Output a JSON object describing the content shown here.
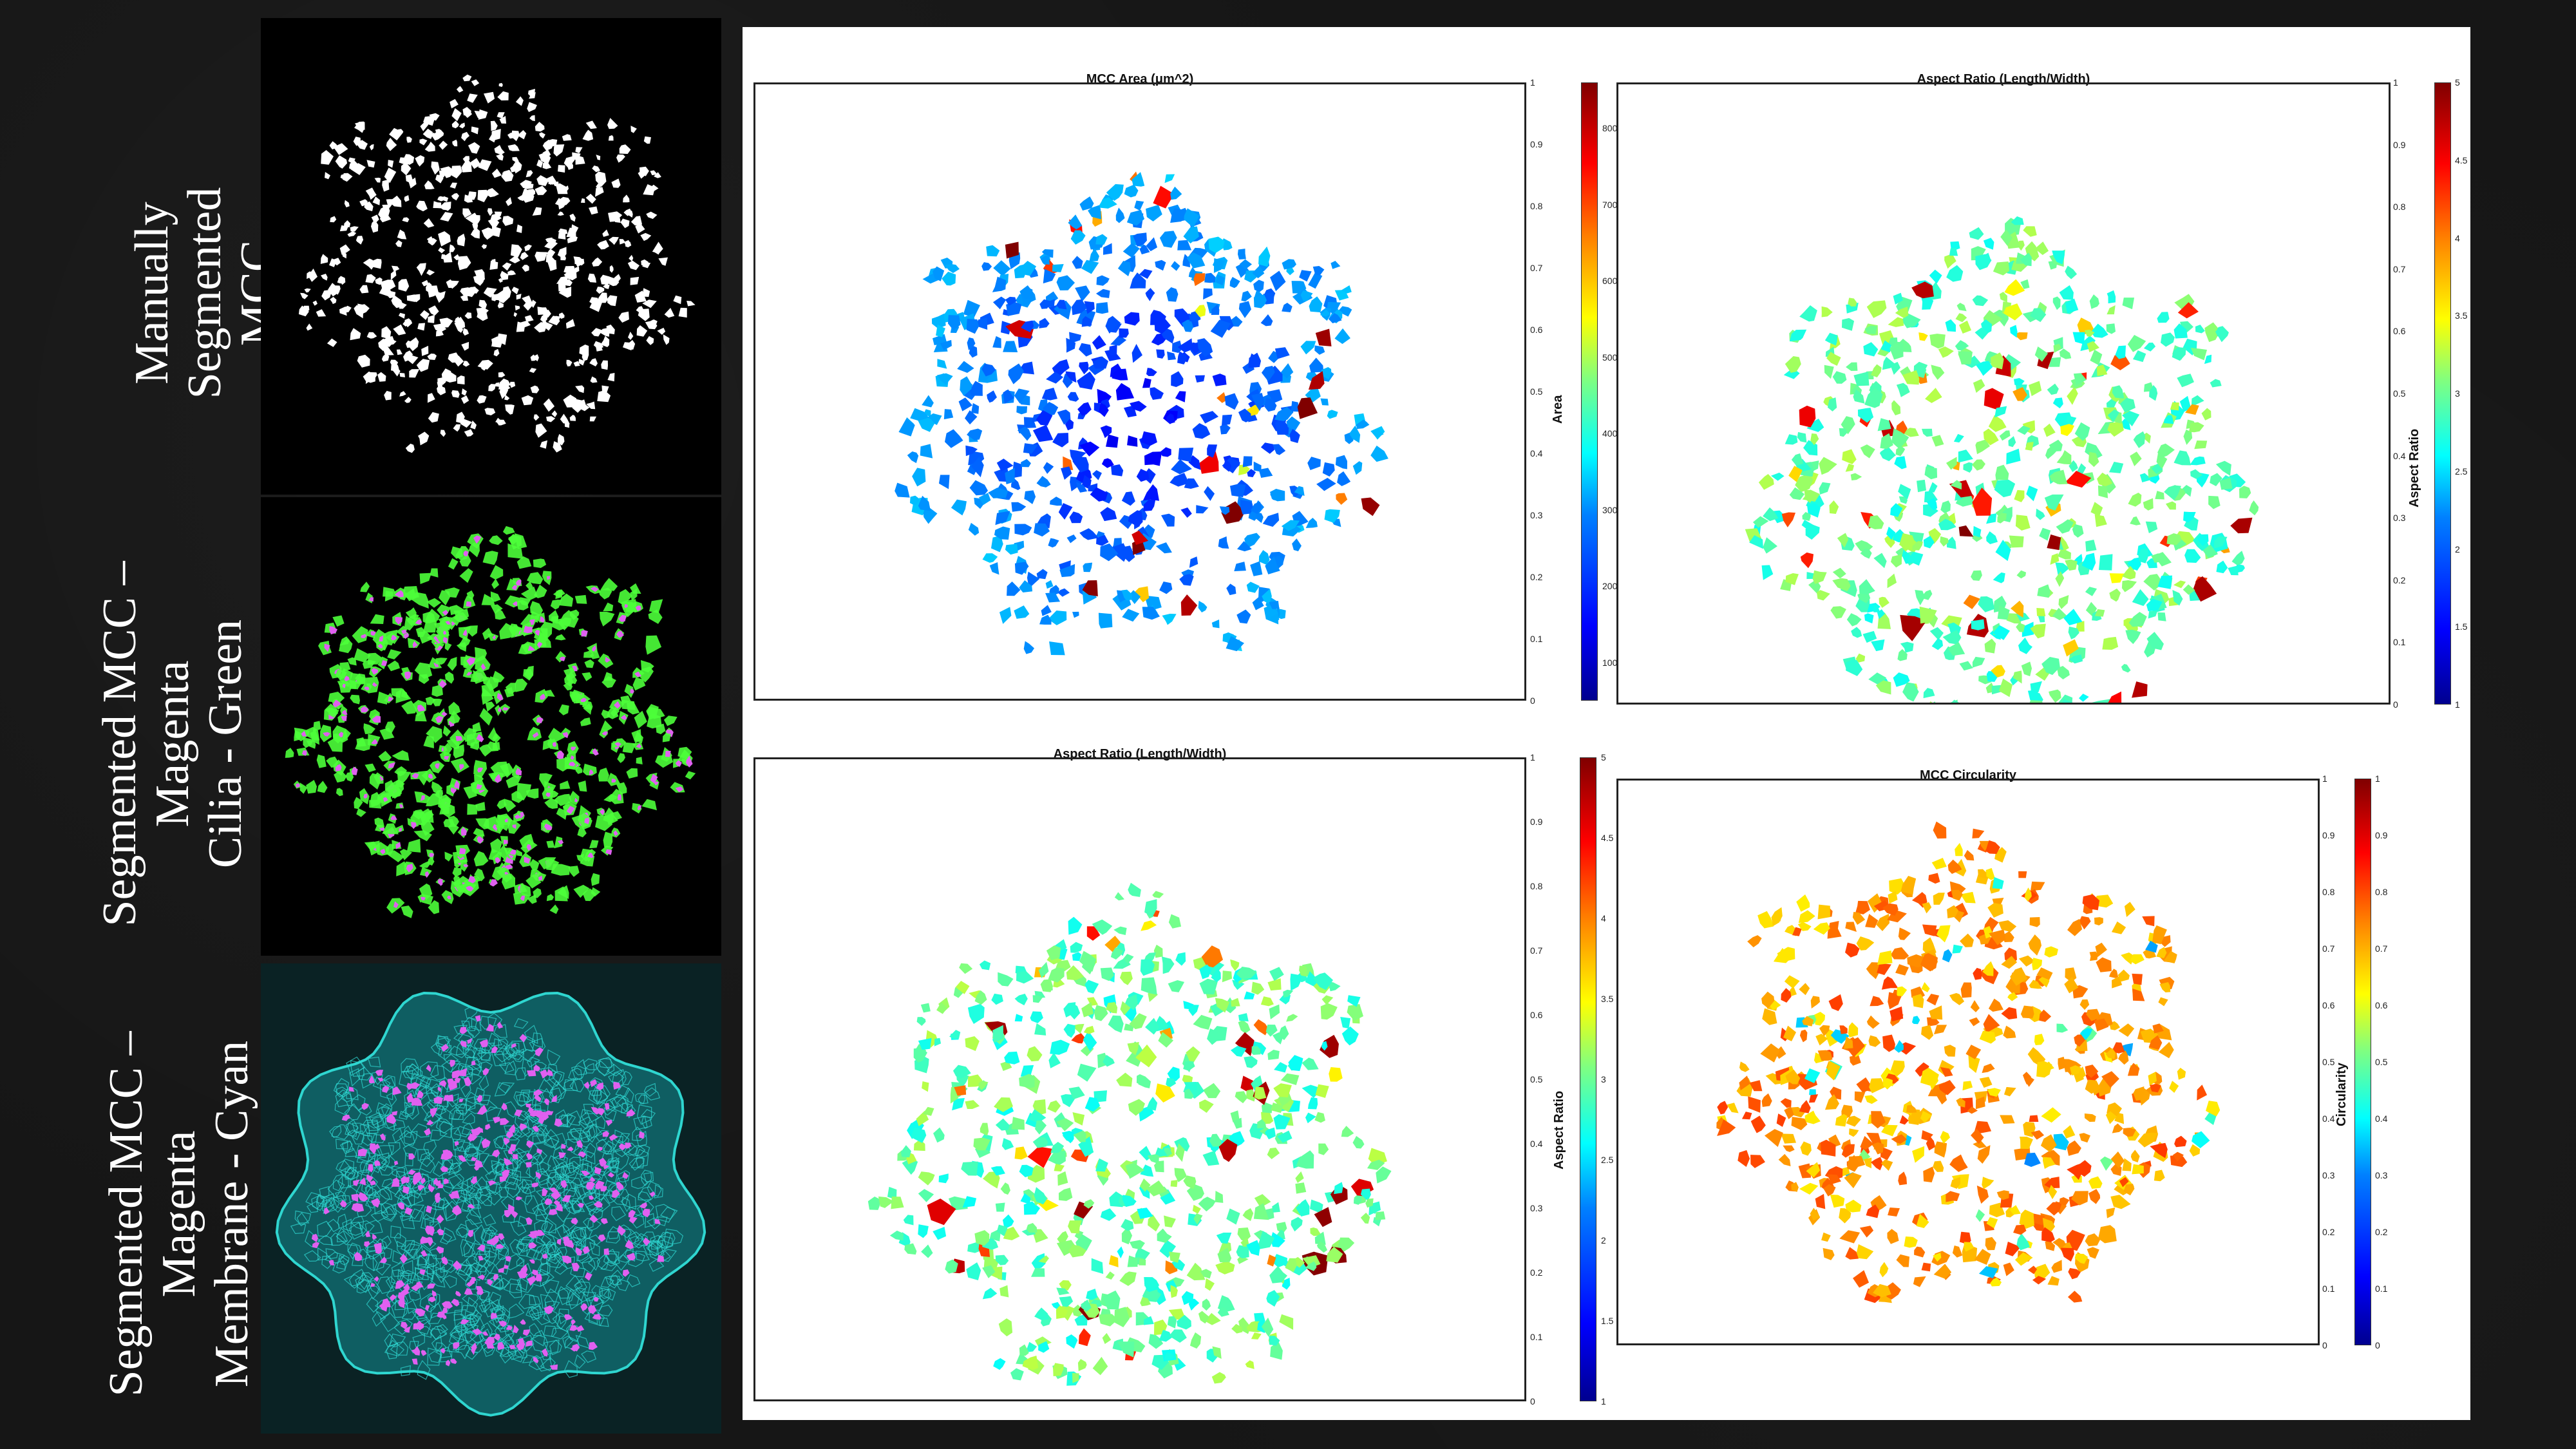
{
  "side_labels": [
    {
      "id": "manual",
      "text": "Manually\nSegmented\nMCC"
    },
    {
      "id": "cilia",
      "text": "Segmented MCC –\nMagenta\nCilia - Green"
    },
    {
      "id": "membrane",
      "text": "Segmented MCC –\nMagenta\nMembrane - Cyan"
    }
  ],
  "colors": {
    "background": "#161616",
    "panel": "#ffffff",
    "mask": "#ffffff",
    "cilia": "#4cff3a",
    "magenta": "#e060f0",
    "membrane": "#2fd6d0"
  },
  "plots": [
    {
      "id": "area",
      "title": "MCC Area (μm^2)",
      "colorbar_label": "Area",
      "axis_ticks": [
        "1",
        "0.9",
        "0.8",
        "0.7",
        "0.6",
        "0.5",
        "0.4",
        "0.3",
        "0.2",
        "0.1",
        "0"
      ],
      "colorbar_ticks": [
        "800",
        "700",
        "600",
        "500",
        "400",
        "300",
        "200",
        "100"
      ],
      "colorbar_range": [
        50,
        860
      ]
    },
    {
      "id": "aspect1",
      "title": "Aspect Ratio (Length/Width)",
      "colorbar_label": "Aspect Ratio",
      "axis_ticks": [
        "1",
        "0.9",
        "0.8",
        "0.7",
        "0.6",
        "0.5",
        "0.4",
        "0.3",
        "0.2",
        "0.1",
        "0"
      ],
      "colorbar_ticks": [
        "5",
        "4.5",
        "4",
        "3.5",
        "3",
        "2.5",
        "2",
        "1.5",
        "1"
      ],
      "colorbar_range": [
        1,
        5
      ]
    },
    {
      "id": "aspect2",
      "title": "Aspect Ratio (Length/Width)",
      "colorbar_label": "Aspect Ratio",
      "axis_ticks": [
        "1",
        "0.9",
        "0.8",
        "0.7",
        "0.6",
        "0.5",
        "0.4",
        "0.3",
        "0.2",
        "0.1",
        "0"
      ],
      "colorbar_ticks": [
        "5",
        "4.5",
        "4",
        "3.5",
        "3",
        "2.5",
        "2",
        "1.5",
        "1"
      ],
      "colorbar_range": [
        1,
        5
      ]
    },
    {
      "id": "circ",
      "title": "MCC Circularity",
      "colorbar_label": "Circularity",
      "axis_ticks": [
        "1",
        "0.9",
        "0.8",
        "0.7",
        "0.6",
        "0.5",
        "0.4",
        "0.3",
        "0.2",
        "0.1",
        "0"
      ],
      "colorbar_ticks": [
        "1",
        "0.9",
        "0.8",
        "0.7",
        "0.6",
        "0.5",
        "0.4",
        "0.3",
        "0.2",
        "0.1",
        "0"
      ],
      "colorbar_range": [
        0,
        1
      ]
    }
  ]
}
